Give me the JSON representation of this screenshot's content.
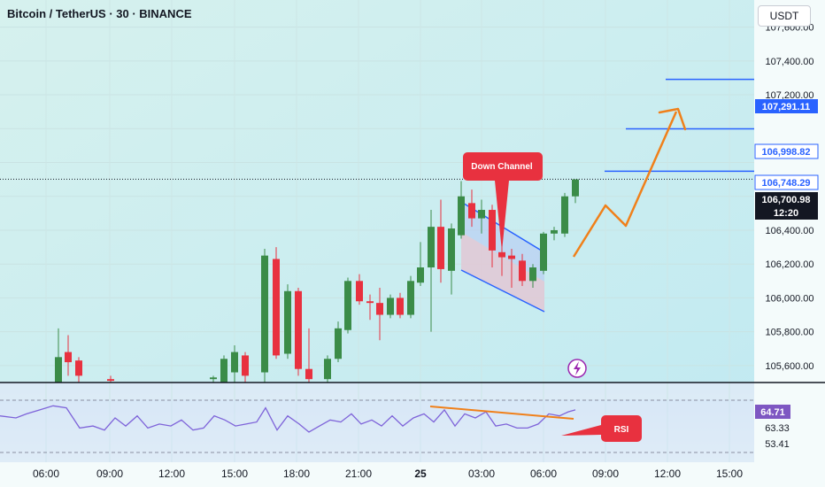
{
  "header": {
    "title": "Bitcoin / TetherUS · 30 · BINANCE",
    "currency": "USDT"
  },
  "price_axis": {
    "ticks": [
      "107,600.00",
      "107,400.00",
      "107,200.00",
      "106,400.00",
      "106,200.00",
      "106,000.00",
      "105,800.00",
      "105,600.00"
    ],
    "labels": [
      {
        "value": "107,291.11",
        "bg": "#2962ff",
        "fg": "#ffffff"
      },
      {
        "value": "106,998.82",
        "bg": "#ffffff",
        "fg": "#2962ff"
      },
      {
        "value": "106,748.29",
        "bg": "#ffffff",
        "fg": "#2962ff"
      },
      {
        "value": "106,700.98",
        "bg": "#131722",
        "fg": "#ffffff"
      },
      {
        "value": "12:20",
        "bg": "#131722",
        "fg": "#ffffff"
      }
    ]
  },
  "time_axis": [
    "06:00",
    "09:00",
    "12:00",
    "15:00",
    "18:00",
    "21:00",
    "25",
    "03:00",
    "06:00",
    "09:00",
    "12:00",
    "15:00"
  ],
  "rsi_axis": {
    "current": "64.71",
    "levels": [
      "63.33",
      "53.41"
    ]
  },
  "annotations": {
    "down_channel": "Down Channel",
    "rsi": "RSI"
  },
  "colors": {
    "bull": "#3b8c48",
    "bear": "#e8313f",
    "arrow": "#f0801a",
    "level_line": "#2962ff",
    "callout": "#e8313f",
    "channel_fill": "#b4c6f4",
    "rsi_line": "#7e63d9"
  },
  "chart_data": {
    "type": "candlestick",
    "symbol": "BTCUSDT",
    "interval": "30",
    "exchange": "BINANCE",
    "candles": [
      {
        "x": 66,
        "o": 105500,
        "h": 105820,
        "l": 105480,
        "c": 105650
      },
      {
        "x": 77,
        "o": 105680,
        "h": 105780,
        "l": 105540,
        "c": 105620
      },
      {
        "x": 89,
        "o": 105630,
        "h": 105650,
        "l": 105480,
        "c": 105540
      },
      {
        "x": 125,
        "o": 105520,
        "h": 105540,
        "l": 105500,
        "c": 105510
      },
      {
        "x": 241,
        "o": 105520,
        "h": 105540,
        "l": 105500,
        "c": 105530
      },
      {
        "x": 253,
        "o": 105500,
        "h": 105660,
        "l": 105480,
        "c": 105640
      },
      {
        "x": 265,
        "o": 105560,
        "h": 105720,
        "l": 105500,
        "c": 105680
      },
      {
        "x": 277,
        "o": 105660,
        "h": 105680,
        "l": 105500,
        "c": 105540
      },
      {
        "x": 299,
        "o": 105560,
        "h": 106290,
        "l": 105500,
        "c": 106250
      },
      {
        "x": 312,
        "o": 106230,
        "h": 106300,
        "l": 105640,
        "c": 105660
      },
      {
        "x": 325,
        "o": 105670,
        "h": 106080,
        "l": 105640,
        "c": 106040
      },
      {
        "x": 337,
        "o": 106040,
        "h": 106060,
        "l": 105540,
        "c": 105580
      },
      {
        "x": 349,
        "o": 105580,
        "h": 105820,
        "l": 105500,
        "c": 105520
      },
      {
        "x": 370,
        "o": 105520,
        "h": 105660,
        "l": 105500,
        "c": 105640
      },
      {
        "x": 382,
        "o": 105640,
        "h": 105860,
        "l": 105620,
        "c": 105820
      },
      {
        "x": 393,
        "o": 105810,
        "h": 106120,
        "l": 105790,
        "c": 106100
      },
      {
        "x": 406,
        "o": 106100,
        "h": 106140,
        "l": 105960,
        "c": 105980
      },
      {
        "x": 418,
        "o": 105980,
        "h": 106020,
        "l": 105870,
        "c": 105970
      },
      {
        "x": 429,
        "o": 105970,
        "h": 106060,
        "l": 105750,
        "c": 105900
      },
      {
        "x": 441,
        "o": 105900,
        "h": 106020,
        "l": 105880,
        "c": 106000
      },
      {
        "x": 452,
        "o": 106000,
        "h": 106030,
        "l": 105880,
        "c": 105900
      },
      {
        "x": 464,
        "o": 105900,
        "h": 106130,
        "l": 105880,
        "c": 106100
      },
      {
        "x": 475,
        "o": 106090,
        "h": 106330,
        "l": 106070,
        "c": 106180
      },
      {
        "x": 487,
        "o": 106180,
        "h": 106520,
        "l": 105800,
        "c": 106420
      },
      {
        "x": 498,
        "o": 106420,
        "h": 106580,
        "l": 106090,
        "c": 106170
      },
      {
        "x": 510,
        "o": 106160,
        "h": 106440,
        "l": 106020,
        "c": 106410
      },
      {
        "x": 521,
        "o": 106370,
        "h": 106690,
        "l": 106350,
        "c": 106600
      },
      {
        "x": 533,
        "o": 106560,
        "h": 106640,
        "l": 106420,
        "c": 106470
      },
      {
        "x": 544,
        "o": 106470,
        "h": 106580,
        "l": 106380,
        "c": 106520
      },
      {
        "x": 556,
        "o": 106520,
        "h": 106550,
        "l": 106180,
        "c": 106280
      },
      {
        "x": 567,
        "o": 106270,
        "h": 106330,
        "l": 106130,
        "c": 106240
      },
      {
        "x": 578,
        "o": 106250,
        "h": 106290,
        "l": 106060,
        "c": 106230
      },
      {
        "x": 590,
        "o": 106220,
        "h": 106260,
        "l": 106070,
        "c": 106100
      },
      {
        "x": 602,
        "o": 106100,
        "h": 106200,
        "l": 106060,
        "c": 106180
      },
      {
        "x": 614,
        "o": 106160,
        "h": 106390,
        "l": 106140,
        "c": 106380
      },
      {
        "x": 626,
        "o": 106380,
        "h": 106420,
        "l": 106340,
        "c": 106400
      },
      {
        "x": 638,
        "o": 106380,
        "h": 106620,
        "l": 106360,
        "c": 106600
      },
      {
        "x": 650,
        "o": 106600,
        "h": 106700,
        "l": 106560,
        "c": 106700
      }
    ],
    "levels": [
      {
        "price": 107291.11,
        "start": "08:30"
      },
      {
        "price": 106998.82,
        "start": "07:00"
      },
      {
        "price": 106748.29,
        "start": "06:00"
      }
    ],
    "last_price": 106700.98,
    "y_range": [
      105500,
      107760
    ],
    "rsi": [
      {
        "x": 0,
        "v": 62
      },
      {
        "x": 18,
        "v": 61
      },
      {
        "x": 30,
        "v": 63
      },
      {
        "x": 45,
        "v": 65
      },
      {
        "x": 60,
        "v": 67
      },
      {
        "x": 75,
        "v": 66
      },
      {
        "x": 90,
        "v": 56
      },
      {
        "x": 105,
        "v": 57
      },
      {
        "x": 118,
        "v": 55
      },
      {
        "x": 130,
        "v": 61
      },
      {
        "x": 142,
        "v": 57
      },
      {
        "x": 155,
        "v": 62
      },
      {
        "x": 167,
        "v": 56
      },
      {
        "x": 180,
        "v": 58
      },
      {
        "x": 193,
        "v": 57
      },
      {
        "x": 205,
        "v": 60
      },
      {
        "x": 218,
        "v": 55
      },
      {
        "x": 230,
        "v": 56
      },
      {
        "x": 242,
        "v": 62
      },
      {
        "x": 254,
        "v": 60
      },
      {
        "x": 266,
        "v": 57
      },
      {
        "x": 278,
        "v": 58
      },
      {
        "x": 290,
        "v": 59
      },
      {
        "x": 300,
        "v": 66
      },
      {
        "x": 313,
        "v": 55
      },
      {
        "x": 325,
        "v": 62
      },
      {
        "x": 338,
        "v": 58
      },
      {
        "x": 349,
        "v": 54
      },
      {
        "x": 361,
        "v": 57
      },
      {
        "x": 373,
        "v": 60
      },
      {
        "x": 385,
        "v": 59
      },
      {
        "x": 397,
        "v": 63
      },
      {
        "x": 408,
        "v": 58
      },
      {
        "x": 420,
        "v": 60
      },
      {
        "x": 431,
        "v": 57
      },
      {
        "x": 443,
        "v": 62
      },
      {
        "x": 455,
        "v": 57
      },
      {
        "x": 467,
        "v": 61
      },
      {
        "x": 479,
        "v": 63
      },
      {
        "x": 490,
        "v": 59
      },
      {
        "x": 502,
        "v": 65
      },
      {
        "x": 514,
        "v": 57
      },
      {
        "x": 525,
        "v": 63
      },
      {
        "x": 537,
        "v": 61
      },
      {
        "x": 549,
        "v": 64
      },
      {
        "x": 560,
        "v": 57
      },
      {
        "x": 572,
        "v": 58
      },
      {
        "x": 584,
        "v": 56
      },
      {
        "x": 596,
        "v": 56
      },
      {
        "x": 608,
        "v": 58
      },
      {
        "x": 620,
        "v": 63
      },
      {
        "x": 632,
        "v": 62
      },
      {
        "x": 642,
        "v": 64
      },
      {
        "x": 650,
        "v": 65
      }
    ]
  }
}
